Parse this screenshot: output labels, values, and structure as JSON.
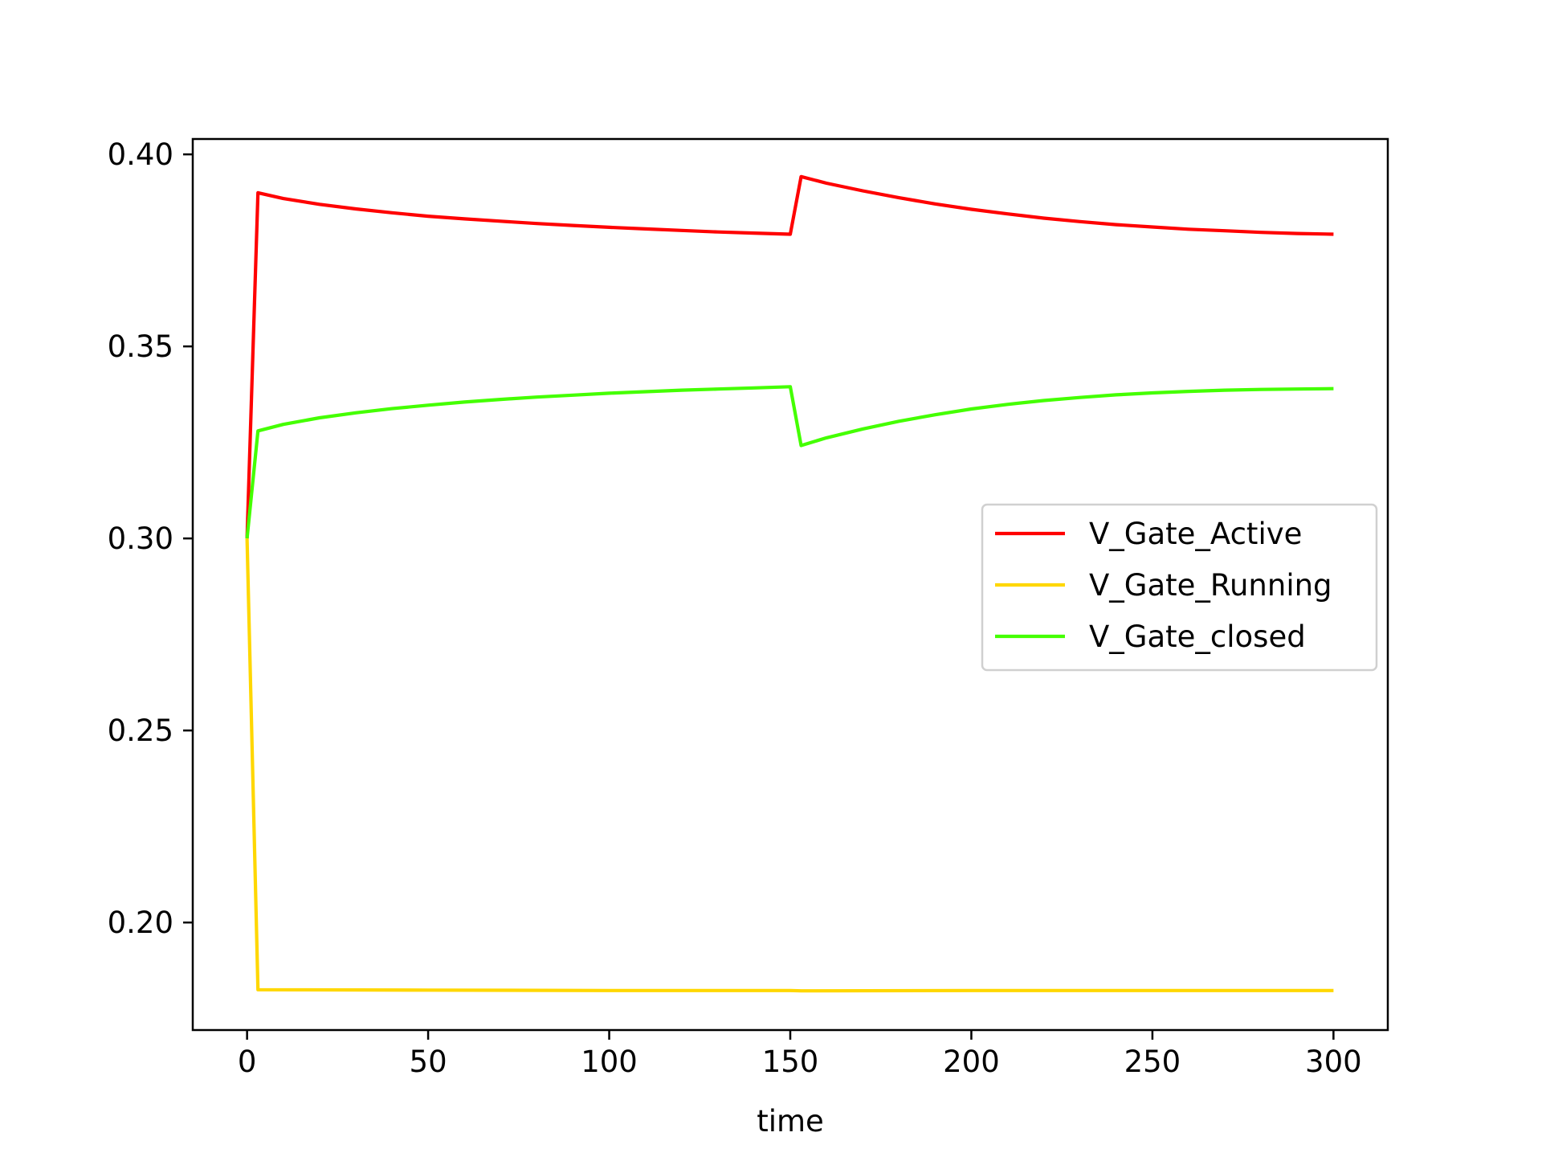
{
  "chart_data": {
    "type": "line",
    "title": "",
    "xlabel": "time",
    "ylabel": "",
    "xlim": [
      -15,
      315
    ],
    "ylim": [
      0.172,
      0.404
    ],
    "xticks": [
      0,
      50,
      100,
      150,
      200,
      250,
      300
    ],
    "xtick_labels": [
      "0",
      "50",
      "100",
      "150",
      "200",
      "250",
      "300"
    ],
    "yticks": [
      0.2,
      0.25,
      0.3,
      0.35,
      0.4
    ],
    "ytick_labels": [
      "0.20",
      "0.25",
      "0.30",
      "0.35",
      "0.40"
    ],
    "grid": false,
    "legend_position": "center-right",
    "series": [
      {
        "name": "V_Gate_Active",
        "color": "#ff0000",
        "x": [
          0,
          3,
          10,
          20,
          30,
          40,
          50,
          60,
          70,
          80,
          90,
          100,
          110,
          120,
          130,
          140,
          150,
          153,
          160,
          170,
          180,
          190,
          200,
          210,
          220,
          230,
          240,
          250,
          260,
          270,
          280,
          290,
          300
        ],
        "y": [
          0.3,
          0.39,
          0.3885,
          0.387,
          0.3858,
          0.3848,
          0.3839,
          0.3832,
          0.3826,
          0.382,
          0.3815,
          0.381,
          0.3806,
          0.3802,
          0.3798,
          0.3795,
          0.3792,
          0.3942,
          0.3925,
          0.3905,
          0.3887,
          0.3871,
          0.3857,
          0.3845,
          0.3834,
          0.3825,
          0.3817,
          0.3811,
          0.3805,
          0.3801,
          0.3797,
          0.3794,
          0.3792
        ]
      },
      {
        "name": "V_Gate_Running",
        "color": "#ffd700",
        "x": [
          0,
          3,
          50,
          100,
          150,
          153,
          200,
          250,
          300
        ],
        "y": [
          0.3,
          0.1825,
          0.1824,
          0.1823,
          0.1823,
          0.1822,
          0.1823,
          0.1823,
          0.1823
        ]
      },
      {
        "name": "V_Gate_closed",
        "color": "#44ff00",
        "x": [
          0,
          3,
          10,
          20,
          30,
          40,
          50,
          60,
          70,
          80,
          90,
          100,
          110,
          120,
          130,
          140,
          150,
          153,
          160,
          170,
          180,
          190,
          200,
          210,
          220,
          230,
          240,
          250,
          260,
          270,
          280,
          290,
          300
        ],
        "y": [
          0.3,
          0.328,
          0.3297,
          0.3314,
          0.3327,
          0.3338,
          0.3347,
          0.3355,
          0.3362,
          0.3368,
          0.3373,
          0.3378,
          0.3382,
          0.3386,
          0.3389,
          0.3392,
          0.3395,
          0.3242,
          0.3262,
          0.3285,
          0.3305,
          0.3322,
          0.3337,
          0.3349,
          0.3359,
          0.3367,
          0.3374,
          0.3379,
          0.3383,
          0.3386,
          0.3388,
          0.3389,
          0.339
        ]
      }
    ]
  }
}
